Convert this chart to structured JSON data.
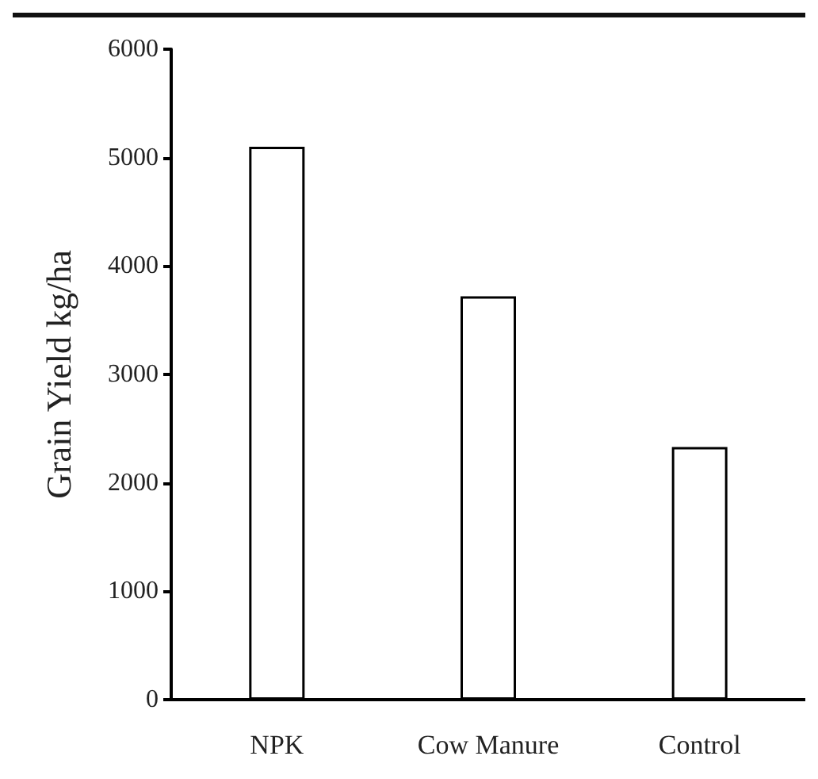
{
  "chart_data": {
    "type": "bar",
    "ylabel": "Grain Yield kg/ha",
    "categories": [
      "NPK",
      "Cow Manure",
      "Control"
    ],
    "values": [
      5100,
      3720,
      2330
    ],
    "color": "#ffffff",
    "ylim": [
      0,
      6000
    ],
    "yticks": [
      0,
      1000,
      2000,
      3000,
      4000,
      5000,
      6000
    ],
    "grid": false
  }
}
